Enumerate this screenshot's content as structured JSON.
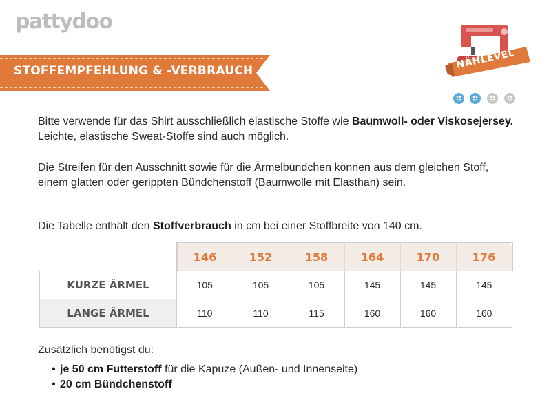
{
  "brand": {
    "logo_text": "pattydoo",
    "accent": "#e07a3a"
  },
  "banner": {
    "title": "STOFFEMPFEHLUNG & -VERBRAUCH",
    "color": "#e07a3a"
  },
  "level_badge": {
    "label": "NÄHLEVEL",
    "icon": "sewing-machine-icon",
    "level": 2,
    "max_level": 4
  },
  "paragraphs": {
    "p1_a": "Bitte verwende für das Shirt ausschließlich elastische Stoffe wie ",
    "p1_b": "Baumwoll- oder Viskosejersey.",
    "p1_c": " Leichte, elastische Sweat-Stoffe sind auch möglich.",
    "p2": "Die Streifen für den Ausschnitt sowie für die Ärmelbündchen können aus dem gleichen Stoff, einem glatten oder gerippten Bündchenstoff (Baumwolle mit Elasthan) sein.",
    "p3_a": "Die Tabelle enthält den ",
    "p3_b": "Stoffverbrauch",
    "p3_c": " in cm bei einer Stoffbreite von 140 cm."
  },
  "table": {
    "sizes": [
      "146",
      "152",
      "158",
      "164",
      "170",
      "176"
    ],
    "rows": [
      {
        "label": "KURZE ÄRMEL",
        "values": [
          "105",
          "105",
          "105",
          "145",
          "145",
          "145"
        ]
      },
      {
        "label": "LANGE ÄRMEL",
        "values": [
          "110",
          "110",
          "115",
          "160",
          "160",
          "160"
        ]
      }
    ]
  },
  "extra": {
    "intro": "Zusätzlich benötigst du:",
    "item1_bold": "je 50 cm Futterstoff",
    "item1_rest": " für die Kapuze (Außen- und Innenseite)",
    "item2_bold": "20 cm Bündchenstoff"
  }
}
